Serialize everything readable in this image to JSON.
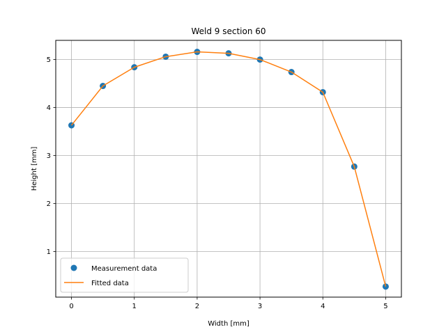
{
  "chart_data": {
    "type": "line",
    "title": "Weld 9 section 60",
    "xlabel": "Width [mm]",
    "ylabel": "Height [mm]",
    "xlim": [
      -0.25,
      5.25
    ],
    "ylim": [
      0.05,
      5.4
    ],
    "xticks": [
      0,
      1,
      2,
      3,
      4,
      5
    ],
    "yticks": [
      1,
      2,
      3,
      4,
      5
    ],
    "xtick_labels": [
      "0",
      "1",
      "2",
      "3",
      "4",
      "5"
    ],
    "ytick_labels": [
      "1",
      "2",
      "3",
      "4",
      "5"
    ],
    "grid": true,
    "legend_position": "lower-left",
    "series": [
      {
        "name": "Measurement data",
        "kind": "markers",
        "color": "#1f77b4",
        "x": [
          0,
          0.5,
          1,
          1.5,
          2,
          2.5,
          3,
          3.5,
          4,
          4.5,
          5
        ],
        "y": [
          3.63,
          4.45,
          4.84,
          5.06,
          5.16,
          5.13,
          5.0,
          4.74,
          4.32,
          2.77,
          0.27
        ]
      },
      {
        "name": "Fitted data",
        "kind": "line",
        "color": "#ff7f0e",
        "x": [
          0,
          0.5,
          1,
          1.5,
          2,
          2.5,
          3,
          3.5,
          4,
          4.5,
          5
        ],
        "y": [
          3.63,
          4.45,
          4.84,
          5.06,
          5.16,
          5.13,
          5.0,
          4.74,
          4.32,
          2.77,
          0.27
        ]
      }
    ]
  }
}
